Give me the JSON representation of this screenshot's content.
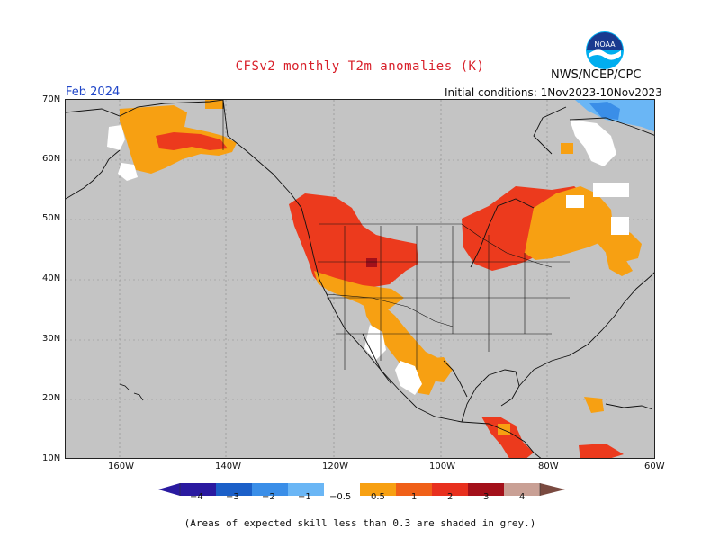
{
  "header": {
    "title": "CFSv2 monthly T2m anomalies (K)",
    "org": "NWS/NCEP/CPC",
    "month": "Feb 2024",
    "initial_conditions": "Initial conditions: 1Nov2023-10Nov2023"
  },
  "logo": {
    "text": "NOAA",
    "icon": "noaa-logo-icon"
  },
  "axes": {
    "lat_labels": [
      "70N",
      "60N",
      "50N",
      "40N",
      "30N",
      "20N",
      "10N"
    ],
    "lon_labels": [
      "160W",
      "140W",
      "120W",
      "100W",
      "80W",
      "60W"
    ]
  },
  "legend": {
    "labels": [
      "−4",
      "−3",
      "−2",
      "−1",
      "−0.5",
      "0.5",
      "1",
      "2",
      "3",
      "4"
    ],
    "colors": [
      "#2a1aa0",
      "#1b5fc8",
      "#3a8ee8",
      "#6ab6f5",
      "#ffffff",
      "#f7a012",
      "#f06018",
      "#e8301e",
      "#a3101a",
      "#c9a095",
      "#7a4a40"
    ]
  },
  "footnote": "(Areas of expected skill less than 0.3 are shaded in grey.)",
  "map_colors": {
    "sea": "#c4c4c4",
    "orange": "#f7a012",
    "red": "#ec3a1d",
    "darkred": "#a3101a",
    "lightblue": "#6ab6f5",
    "blue": "#3a8ee8",
    "white": "#ffffff"
  }
}
